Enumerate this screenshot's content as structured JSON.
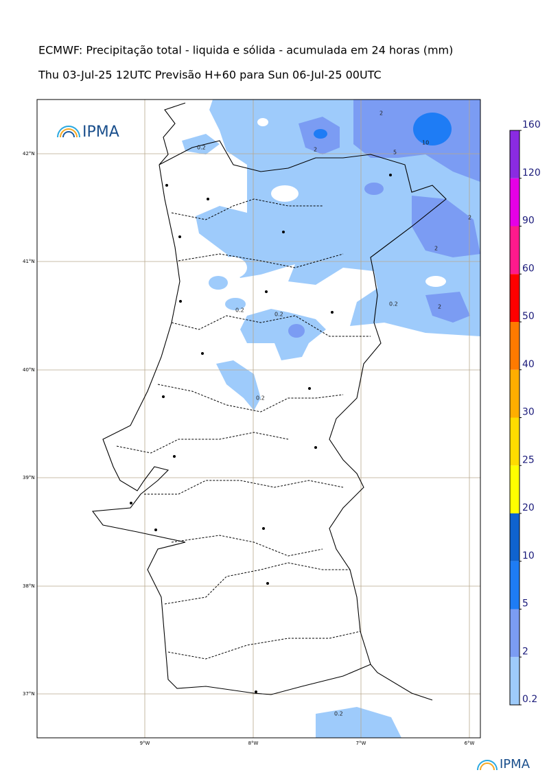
{
  "header": {
    "title": "ECMWF: Precipitação total - liquida e sólida - acumulada em 24 horas (mm)",
    "subtitle": "Thu 03-Jul-25 12UTC Previsão H+60 para Sun 06-Jul-25 00UTC"
  },
  "logo": {
    "text": "IPMA",
    "footer_text": "IPMA"
  },
  "latitude_labels": [
    "42°N",
    "41°N",
    "40°N",
    "39°N",
    "38°N",
    "37°N"
  ],
  "longitude_labels": [
    "9°W",
    "8°W",
    "7°W",
    "6°W"
  ],
  "contour_labels": [
    "0.2",
    "0.2",
    "0.2",
    "0.2",
    "0.2",
    "0.2",
    "2",
    "2",
    "2",
    "2",
    "2",
    "5",
    "10"
  ],
  "colorbar": {
    "levels": [
      0.2,
      2,
      5,
      10,
      20,
      25,
      30,
      40,
      50,
      60,
      90,
      120,
      160
    ],
    "colors": [
      "#9ecbfb",
      "#7b9cf3",
      "#1e7cf5",
      "#0f63cf",
      "#ffff00",
      "#ffdc00",
      "#ffae00",
      "#ff7a00",
      "#ff0000",
      "#ff1a8c",
      "#e600e6",
      "#8a2be2"
    ]
  }
}
